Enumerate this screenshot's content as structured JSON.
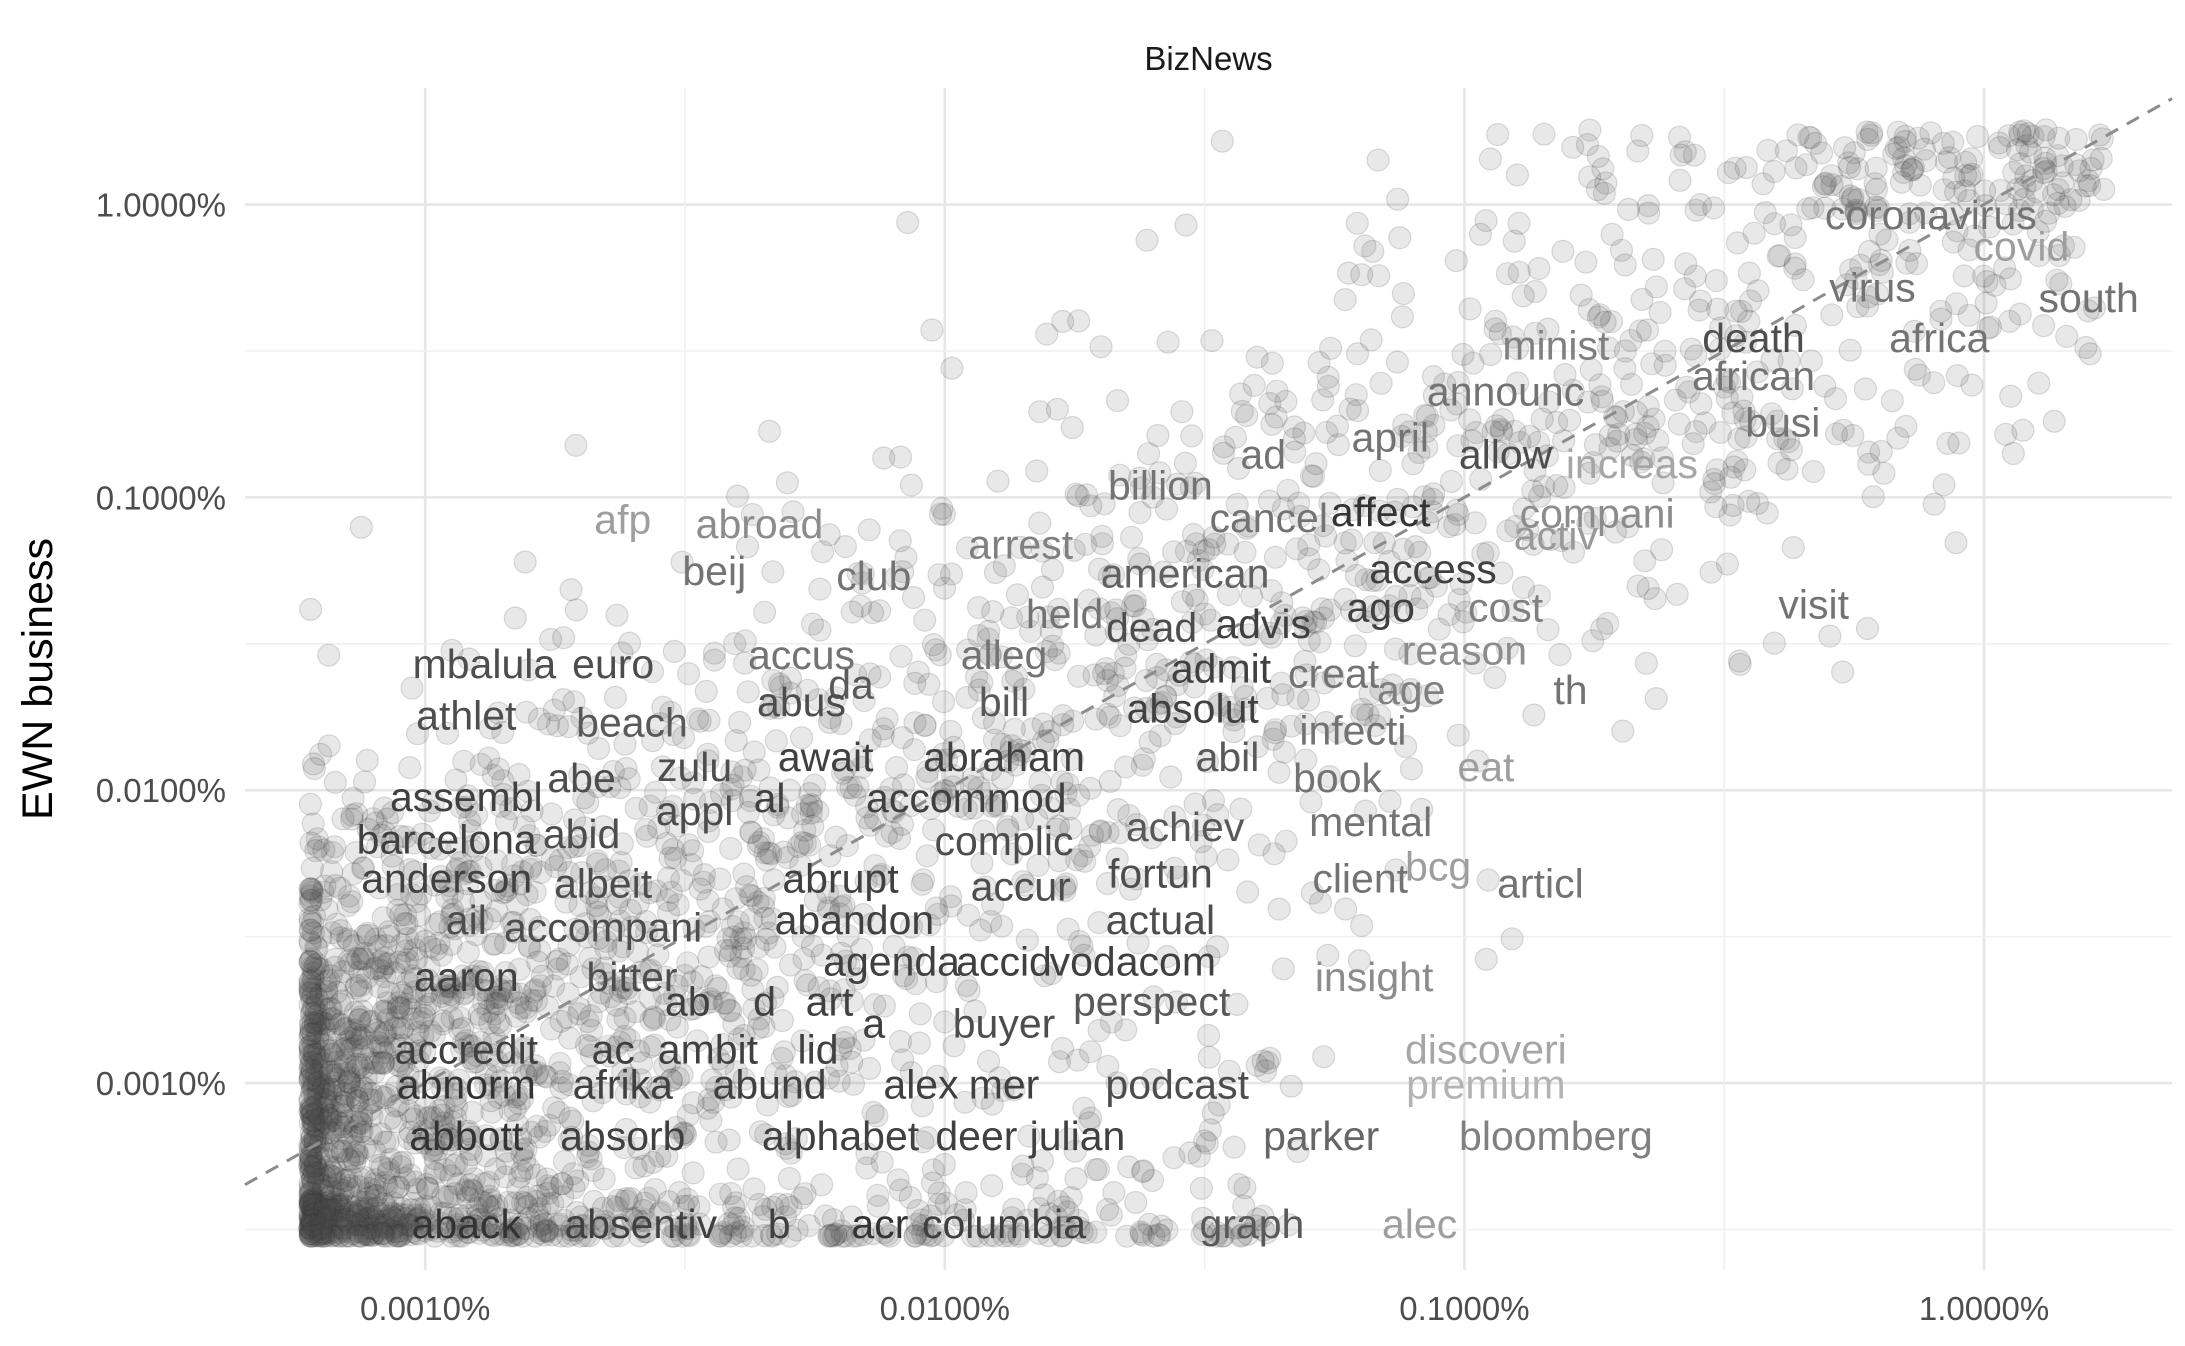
{
  "chart_data": {
    "type": "scatter",
    "title": "BizNews",
    "xlabel": "",
    "ylabel": "EWN business",
    "scale": "log10",
    "xlim": [
      0.00045,
      2.3
    ],
    "ylim": [
      0.00023,
      2.5
    ],
    "x_ticks": [
      0.001,
      0.01,
      0.1,
      1.0
    ],
    "x_tick_labels": [
      "0.0010%",
      "0.0100%",
      "0.1000%",
      "1.0000%"
    ],
    "y_ticks": [
      0.001,
      0.01,
      0.1,
      1.0
    ],
    "y_tick_labels": [
      "0.0010%",
      "0.0100%",
      "0.1000%",
      "1.0000%"
    ],
    "reference_line": "y = x (dashed)",
    "background_points": "approx. 3000 semi-transparent grey word frequency points concentrated along the diagonal",
    "labels": [
      {
        "word": "coronavirus",
        "x": 0.79,
        "y": 0.92,
        "shade": 0.45
      },
      {
        "word": "covid",
        "x": 1.18,
        "y": 0.72,
        "shade": 0.62
      },
      {
        "word": "virus",
        "x": 0.61,
        "y": 0.52,
        "shade": 0.45
      },
      {
        "word": "south",
        "x": 1.59,
        "y": 0.48,
        "shade": 0.45
      },
      {
        "word": "death",
        "x": 0.36,
        "y": 0.35,
        "shade": 0.3
      },
      {
        "word": "africa",
        "x": 0.82,
        "y": 0.35,
        "shade": 0.45
      },
      {
        "word": "minist",
        "x": 0.15,
        "y": 0.33,
        "shade": 0.5
      },
      {
        "word": "african",
        "x": 0.36,
        "y": 0.26,
        "shade": 0.45
      },
      {
        "word": "announc",
        "x": 0.12,
        "y": 0.23,
        "shade": 0.45
      },
      {
        "word": "busi",
        "x": 0.41,
        "y": 0.18,
        "shade": 0.45
      },
      {
        "word": "april",
        "x": 0.072,
        "y": 0.16,
        "shade": 0.45
      },
      {
        "word": "allow",
        "x": 0.12,
        "y": 0.14,
        "shade": 0.3
      },
      {
        "word": "ad",
        "x": 0.041,
        "y": 0.14,
        "shade": 0.45
      },
      {
        "word": "increas",
        "x": 0.21,
        "y": 0.13,
        "shade": 0.65
      },
      {
        "word": "billion",
        "x": 0.026,
        "y": 0.11,
        "shade": 0.45
      },
      {
        "word": "affect",
        "x": 0.069,
        "y": 0.089,
        "shade": 0.2
      },
      {
        "word": "compani",
        "x": 0.18,
        "y": 0.088,
        "shade": 0.55
      },
      {
        "word": "cancel",
        "x": 0.042,
        "y": 0.085,
        "shade": 0.45
      },
      {
        "word": "afp",
        "x": 0.0024,
        "y": 0.084,
        "shade": 0.62
      },
      {
        "word": "abroad",
        "x": 0.0044,
        "y": 0.081,
        "shade": 0.55
      },
      {
        "word": "activ",
        "x": 0.15,
        "y": 0.074,
        "shade": 0.6
      },
      {
        "word": "arrest",
        "x": 0.014,
        "y": 0.069,
        "shade": 0.5
      },
      {
        "word": "access",
        "x": 0.087,
        "y": 0.057,
        "shade": 0.25
      },
      {
        "word": "american",
        "x": 0.029,
        "y": 0.055,
        "shade": 0.38
      },
      {
        "word": "beij",
        "x": 0.0036,
        "y": 0.056,
        "shade": 0.45
      },
      {
        "word": "club",
        "x": 0.0073,
        "y": 0.054,
        "shade": 0.45
      },
      {
        "word": "visit",
        "x": 0.47,
        "y": 0.043,
        "shade": 0.45
      },
      {
        "word": "ago",
        "x": 0.069,
        "y": 0.042,
        "shade": 0.25
      },
      {
        "word": "cost",
        "x": 0.12,
        "y": 0.042,
        "shade": 0.5
      },
      {
        "word": "held",
        "x": 0.017,
        "y": 0.04,
        "shade": 0.45
      },
      {
        "word": "advis",
        "x": 0.041,
        "y": 0.037,
        "shade": 0.25
      },
      {
        "word": "dead",
        "x": 0.025,
        "y": 0.036,
        "shade": 0.3
      },
      {
        "word": "reason",
        "x": 0.1,
        "y": 0.03,
        "shade": 0.55
      },
      {
        "word": "accus",
        "x": 0.0053,
        "y": 0.029,
        "shade": 0.45
      },
      {
        "word": "alleg",
        "x": 0.013,
        "y": 0.029,
        "shade": 0.45
      },
      {
        "word": "mbalula",
        "x": 0.0013,
        "y": 0.027,
        "shade": 0.3
      },
      {
        "word": "euro",
        "x": 0.0023,
        "y": 0.027,
        "shade": 0.3
      },
      {
        "word": "admit",
        "x": 0.034,
        "y": 0.026,
        "shade": 0.25
      },
      {
        "word": "creat",
        "x": 0.056,
        "y": 0.025,
        "shade": 0.45
      },
      {
        "word": "da",
        "x": 0.0066,
        "y": 0.023,
        "shade": 0.35
      },
      {
        "word": "age",
        "x": 0.079,
        "y": 0.022,
        "shade": 0.5
      },
      {
        "word": "th",
        "x": 0.16,
        "y": 0.022,
        "shade": 0.45
      },
      {
        "word": "abus",
        "x": 0.0053,
        "y": 0.02,
        "shade": 0.3
      },
      {
        "word": "bill",
        "x": 0.013,
        "y": 0.02,
        "shade": 0.35
      },
      {
        "word": "absolut",
        "x": 0.03,
        "y": 0.019,
        "shade": 0.25
      },
      {
        "word": "athlet",
        "x": 0.0012,
        "y": 0.018,
        "shade": 0.3
      },
      {
        "word": "beach",
        "x": 0.0025,
        "y": 0.017,
        "shade": 0.35
      },
      {
        "word": "infecti",
        "x": 0.061,
        "y": 0.016,
        "shade": 0.45
      },
      {
        "word": "abraham",
        "x": 0.013,
        "y": 0.013,
        "shade": 0.25
      },
      {
        "word": "await",
        "x": 0.0059,
        "y": 0.013,
        "shade": 0.25
      },
      {
        "word": "abil",
        "x": 0.035,
        "y": 0.013,
        "shade": 0.35
      },
      {
        "word": "zulu",
        "x": 0.0033,
        "y": 0.012,
        "shade": 0.3
      },
      {
        "word": "eat",
        "x": 0.11,
        "y": 0.012,
        "shade": 0.62
      },
      {
        "word": "book",
        "x": 0.057,
        "y": 0.011,
        "shade": 0.45
      },
      {
        "word": "abe",
        "x": 0.002,
        "y": 0.011,
        "shade": 0.3
      },
      {
        "word": "assembl",
        "x": 0.0012,
        "y": 0.0095,
        "shade": 0.25
      },
      {
        "word": "al",
        "x": 0.0046,
        "y": 0.0094,
        "shade": 0.25
      },
      {
        "word": "accommod",
        "x": 0.011,
        "y": 0.0094,
        "shade": 0.25
      },
      {
        "word": "appl",
        "x": 0.0033,
        "y": 0.0085,
        "shade": 0.3
      },
      {
        "word": "achiev",
        "x": 0.029,
        "y": 0.0075,
        "shade": 0.35
      },
      {
        "word": "mental",
        "x": 0.066,
        "y": 0.0078,
        "shade": 0.45
      },
      {
        "word": "barcelona",
        "x": 0.0011,
        "y": 0.0068,
        "shade": 0.25
      },
      {
        "word": "abid",
        "x": 0.002,
        "y": 0.0071,
        "shade": 0.3
      },
      {
        "word": "complic",
        "x": 0.013,
        "y": 0.0067,
        "shade": 0.3
      },
      {
        "word": "fortun",
        "x": 0.026,
        "y": 0.0052,
        "shade": 0.3
      },
      {
        "word": "bcg",
        "x": 0.089,
        "y": 0.0055,
        "shade": 0.62
      },
      {
        "word": "anderson",
        "x": 0.0011,
        "y": 0.005,
        "shade": 0.25
      },
      {
        "word": "abrupt",
        "x": 0.0063,
        "y": 0.005,
        "shade": 0.25
      },
      {
        "word": "client",
        "x": 0.063,
        "y": 0.005,
        "shade": 0.45
      },
      {
        "word": "albeit",
        "x": 0.0022,
        "y": 0.0048,
        "shade": 0.3
      },
      {
        "word": "accur",
        "x": 0.014,
        "y": 0.0047,
        "shade": 0.3
      },
      {
        "word": "articl",
        "x": 0.14,
        "y": 0.0048,
        "shade": 0.45
      },
      {
        "word": "ail",
        "x": 0.0012,
        "y": 0.0036,
        "shade": 0.3
      },
      {
        "word": "abandon",
        "x": 0.0067,
        "y": 0.0036,
        "shade": 0.25
      },
      {
        "word": "actual",
        "x": 0.026,
        "y": 0.0036,
        "shade": 0.3
      },
      {
        "word": "accompani",
        "x": 0.0022,
        "y": 0.0034,
        "shade": 0.3
      },
      {
        "word": "agenda",
        "x": 0.0079,
        "y": 0.0026,
        "shade": 0.25
      },
      {
        "word": "accid",
        "x": 0.013,
        "y": 0.0026,
        "shade": 0.25
      },
      {
        "word": "vodacom",
        "x": 0.023,
        "y": 0.0026,
        "shade": 0.25
      },
      {
        "word": "aaron",
        "x": 0.0012,
        "y": 0.0023,
        "shade": 0.25
      },
      {
        "word": "bitter",
        "x": 0.0025,
        "y": 0.0023,
        "shade": 0.3
      },
      {
        "word": "insight",
        "x": 0.067,
        "y": 0.0023,
        "shade": 0.55
      },
      {
        "word": "ab",
        "x": 0.0032,
        "y": 0.0019,
        "shade": 0.25
      },
      {
        "word": "d",
        "x": 0.0045,
        "y": 0.0019,
        "shade": 0.25
      },
      {
        "word": "art",
        "x": 0.006,
        "y": 0.0019,
        "shade": 0.25
      },
      {
        "word": "perspect",
        "x": 0.025,
        "y": 0.0019,
        "shade": 0.35
      },
      {
        "word": "buyer",
        "x": 0.013,
        "y": 0.0016,
        "shade": 0.3
      },
      {
        "word": "a",
        "x": 0.0073,
        "y": 0.0016,
        "shade": 0.25
      },
      {
        "word": "accredit",
        "x": 0.0012,
        "y": 0.0013,
        "shade": 0.25
      },
      {
        "word": "ac",
        "x": 0.0023,
        "y": 0.0013,
        "shade": 0.25
      },
      {
        "word": "ambit",
        "x": 0.0035,
        "y": 0.0013,
        "shade": 0.25
      },
      {
        "word": "lid",
        "x": 0.0057,
        "y": 0.0013,
        "shade": 0.25
      },
      {
        "word": "discoveri",
        "x": 0.11,
        "y": 0.0013,
        "shade": 0.65
      },
      {
        "word": "abnorm",
        "x": 0.0012,
        "y": 0.00099,
        "shade": 0.2
      },
      {
        "word": "afrika",
        "x": 0.0024,
        "y": 0.00099,
        "shade": 0.25
      },
      {
        "word": "abund",
        "x": 0.0046,
        "y": 0.00099,
        "shade": 0.25
      },
      {
        "word": "alex",
        "x": 0.009,
        "y": 0.00099,
        "shade": 0.25
      },
      {
        "word": "mer",
        "x": 0.013,
        "y": 0.00099,
        "shade": 0.25
      },
      {
        "word": "podcast",
        "x": 0.028,
        "y": 0.00099,
        "shade": 0.3
      },
      {
        "word": "premium",
        "x": 0.11,
        "y": 0.00099,
        "shade": 0.7
      },
      {
        "word": "abbott",
        "x": 0.0012,
        "y": 0.00066,
        "shade": 0.2
      },
      {
        "word": "absorb",
        "x": 0.0024,
        "y": 0.00066,
        "shade": 0.25
      },
      {
        "word": "alphabet",
        "x": 0.0063,
        "y": 0.00066,
        "shade": 0.25
      },
      {
        "word": "deer",
        "x": 0.0115,
        "y": 0.00066,
        "shade": 0.25
      },
      {
        "word": "julian",
        "x": 0.018,
        "y": 0.00066,
        "shade": 0.25
      },
      {
        "word": "parker",
        "x": 0.053,
        "y": 0.00066,
        "shade": 0.4
      },
      {
        "word": "bloomberg",
        "x": 0.15,
        "y": 0.00066,
        "shade": 0.5
      },
      {
        "word": "aback",
        "x": 0.0012,
        "y": 0.00033,
        "shade": 0.2
      },
      {
        "word": "absentiv",
        "x": 0.0026,
        "y": 0.00033,
        "shade": 0.25
      },
      {
        "word": "b",
        "x": 0.0048,
        "y": 0.00033,
        "shade": 0.25
      },
      {
        "word": "acr",
        "x": 0.0075,
        "y": 0.00033,
        "shade": 0.2
      },
      {
        "word": "columbia",
        "x": 0.013,
        "y": 0.00033,
        "shade": 0.25
      },
      {
        "word": "graph",
        "x": 0.039,
        "y": 0.00033,
        "shade": 0.35
      },
      {
        "word": "alec",
        "x": 0.082,
        "y": 0.00033,
        "shade": 0.62
      }
    ]
  }
}
